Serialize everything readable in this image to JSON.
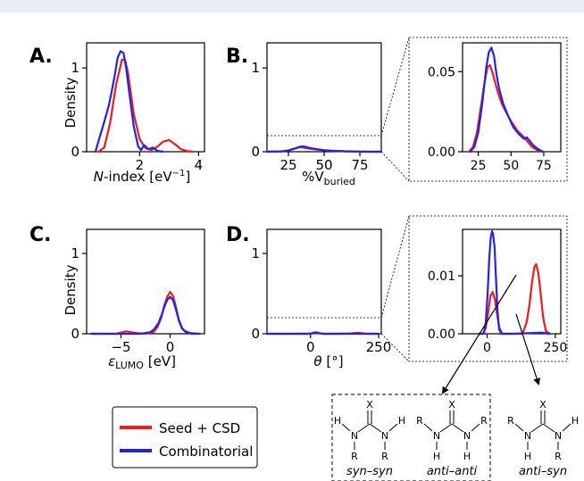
{
  "colors": {
    "seed": "#ee1c1c",
    "comb": "#2323e6",
    "axis": "#000000",
    "header": "#e9eef4"
  },
  "legend": {
    "items": [
      "Seed + CSD",
      "Combinatorial"
    ]
  },
  "chart_data": [
    {
      "panel": "A.",
      "type": "line",
      "ylabel": "Density",
      "xlabel": "N-index [eV⁻¹]",
      "xlim": [
        0.2,
        4.2
      ],
      "ylim": [
        0,
        1.3
      ],
      "xticks": [
        "2",
        "4"
      ],
      "yticks": [
        "0",
        "1"
      ],
      "series": [
        {
          "name": "Seed + CSD",
          "x": [
            0.6,
            0.8,
            1.0,
            1.2,
            1.4,
            1.5,
            1.6,
            1.8,
            2.0,
            2.2,
            2.4,
            2.6,
            2.8,
            3.0,
            3.2,
            3.4,
            3.6,
            3.8
          ],
          "y": [
            0.0,
            0.05,
            0.35,
            0.8,
            1.1,
            1.1,
            0.95,
            0.45,
            0.15,
            0.04,
            0.02,
            0.06,
            0.12,
            0.14,
            0.09,
            0.03,
            0.01,
            0.0
          ]
        },
        {
          "name": "Combinatorial",
          "x": [
            0.5,
            0.65,
            0.75,
            0.85,
            0.95,
            1.05,
            1.15,
            1.25,
            1.35,
            1.45,
            1.55,
            1.65,
            1.8,
            1.95,
            2.05,
            2.15,
            2.3,
            2.45,
            2.6,
            2.8
          ],
          "y": [
            0.0,
            0.18,
            0.3,
            0.42,
            0.55,
            0.72,
            0.9,
            1.12,
            1.2,
            1.18,
            0.98,
            0.7,
            0.3,
            0.06,
            0.02,
            0.08,
            0.03,
            0.05,
            0.01,
            0.0
          ]
        }
      ]
    },
    {
      "panel": "B.",
      "type": "line",
      "ylabel": "",
      "xlabel": "%V",
      "xlabel_sub": "buried",
      "xlim": [
        10,
        90
      ],
      "ylim": [
        0,
        1.3
      ],
      "xticks": [
        "25",
        "50",
        "75"
      ],
      "yticks": [
        "0",
        "1"
      ],
      "series": [
        {
          "name": "Seed + CSD",
          "x": [
            10,
            20,
            25,
            30,
            33,
            36,
            40,
            45,
            50,
            55,
            60,
            65,
            70,
            80,
            90
          ],
          "y": [
            0.0,
            0.003,
            0.015,
            0.04,
            0.054,
            0.048,
            0.035,
            0.025,
            0.017,
            0.012,
            0.008,
            0.004,
            0.002,
            0.0,
            0.0
          ]
        },
        {
          "name": "Combinatorial",
          "x": [
            10,
            20,
            25,
            30,
            33,
            36,
            40,
            45,
            50,
            55,
            60,
            62,
            65,
            70,
            80,
            90
          ],
          "y": [
            0.0,
            0.004,
            0.015,
            0.04,
            0.06,
            0.064,
            0.045,
            0.03,
            0.018,
            0.012,
            0.008,
            0.009,
            0.005,
            0.003,
            0.0,
            0.0
          ]
        }
      ]
    },
    {
      "panel": "B inset",
      "type": "line",
      "ylabel": "",
      "xlabel": "",
      "xlim": [
        13,
        88
      ],
      "ylim": [
        0,
        0.068
      ],
      "xticks": [
        "25",
        "50",
        "75"
      ],
      "yticks": [
        "0.00",
        "0.05"
      ],
      "series": [
        {
          "name": "Seed + CSD",
          "x": [
            18,
            21,
            24,
            27,
            30,
            32,
            34,
            36,
            38,
            40,
            43,
            46,
            50,
            55,
            60,
            63,
            66,
            70,
            75
          ],
          "y": [
            0.0,
            0.003,
            0.012,
            0.028,
            0.044,
            0.053,
            0.054,
            0.049,
            0.043,
            0.037,
            0.03,
            0.025,
            0.019,
            0.013,
            0.009,
            0.006,
            0.003,
            0.001,
            0.0
          ]
        },
        {
          "name": "Combinatorial",
          "x": [
            19,
            22,
            25,
            28,
            31,
            33,
            35,
            37,
            39,
            41,
            44,
            48,
            52,
            56,
            60,
            62,
            64,
            67,
            70,
            74
          ],
          "y": [
            0.0,
            0.003,
            0.012,
            0.03,
            0.052,
            0.062,
            0.065,
            0.06,
            0.048,
            0.039,
            0.03,
            0.022,
            0.015,
            0.011,
            0.008,
            0.009,
            0.007,
            0.004,
            0.002,
            0.0
          ]
        }
      ]
    },
    {
      "panel": "C.",
      "type": "line",
      "ylabel": "Density",
      "xlabel": "εLUMO [eV]",
      "xlim": [
        -8.5,
        3.5
      ],
      "ylim": [
        0,
        1.3
      ],
      "xticks": [
        "−5",
        "0"
      ],
      "yticks": [
        "0",
        "1"
      ],
      "series": [
        {
          "name": "Seed + CSD",
          "x": [
            -8,
            -5.5,
            -4.5,
            -3.5,
            -2.5,
            -1.7,
            -1.3,
            -0.9,
            -0.6,
            -0.3,
            0.0,
            0.3,
            0.6,
            0.9,
            1.3,
            2.0,
            3.0
          ],
          "y": [
            0.0,
            0.0,
            0.03,
            0.01,
            0.0,
            0.02,
            0.08,
            0.2,
            0.35,
            0.46,
            0.52,
            0.47,
            0.33,
            0.17,
            0.05,
            0.01,
            0.0
          ]
        },
        {
          "name": "Combinatorial",
          "x": [
            -8,
            -3,
            -2.0,
            -1.6,
            -1.2,
            -0.9,
            -0.6,
            -0.3,
            0.0,
            0.3,
            0.6,
            0.9,
            1.2,
            1.6,
            2.2,
            3.0
          ],
          "y": [
            0.0,
            0.0,
            0.02,
            0.06,
            0.13,
            0.22,
            0.33,
            0.42,
            0.46,
            0.42,
            0.3,
            0.16,
            0.07,
            0.02,
            0.0,
            0.0
          ]
        }
      ]
    },
    {
      "panel": "D.",
      "type": "line",
      "ylabel": "",
      "xlabel": "θ [°]",
      "xlim": [
        -160,
        260
      ],
      "ylim": [
        0,
        1.3
      ],
      "xticks": [
        "0",
        "250"
      ],
      "yticks": [
        "0",
        "1"
      ],
      "series": [
        {
          "name": "Seed + CSD",
          "x": [
            -160,
            -5,
            5,
            15,
            25,
            35,
            45,
            60,
            100,
            150,
            165,
            175,
            185,
            195,
            205,
            250
          ],
          "y": [
            0.0,
            0.0,
            0.003,
            0.007,
            0.006,
            0.003,
            0.0,
            0.0,
            0.0,
            0.004,
            0.01,
            0.012,
            0.009,
            0.004,
            0.0,
            0.0
          ]
        },
        {
          "name": "Combinatorial",
          "x": [
            -160,
            -5,
            5,
            12,
            18,
            24,
            30,
            38,
            45,
            60,
            250
          ],
          "y": [
            0.0,
            0.0,
            0.006,
            0.014,
            0.018,
            0.016,
            0.01,
            0.004,
            0.0,
            0.0,
            0.0
          ]
        }
      ]
    },
    {
      "panel": "D inset",
      "type": "line",
      "ylabel": "",
      "xlabel": "",
      "xlim": [
        -90,
        270
      ],
      "ylim": [
        0,
        0.018
      ],
      "xticks": [
        "0",
        "250"
      ],
      "yticks": [
        "0.00",
        "0.01"
      ],
      "series": [
        {
          "name": "Seed + CSD",
          "x": [
            -30,
            -15,
            -5,
            5,
            12,
            20,
            28,
            36,
            45,
            55,
            100,
            130,
            145,
            155,
            165,
            173,
            180,
            188,
            196,
            205,
            215,
            230
          ],
          "y": [
            0.0,
            0.0,
            0.001,
            0.004,
            0.0065,
            0.0072,
            0.006,
            0.0035,
            0.001,
            0.0,
            0.0,
            0.0,
            0.002,
            0.005,
            0.009,
            0.0115,
            0.012,
            0.0105,
            0.007,
            0.003,
            0.0005,
            0.0
          ]
        },
        {
          "name": "Combinatorial",
          "x": [
            -30,
            -12,
            -5,
            2,
            8,
            13,
            18,
            22,
            27,
            32,
            38,
            44,
            52,
            60,
            100,
            200,
            230
          ],
          "y": [
            0.0,
            0.0,
            0.002,
            0.007,
            0.013,
            0.0165,
            0.0177,
            0.0172,
            0.015,
            0.01,
            0.004,
            0.0008,
            0.0,
            0.0,
            0.0,
            0.0002,
            0.0
          ]
        }
      ]
    }
  ],
  "structures": {
    "syn_syn": {
      "label": "syn–syn",
      "atoms": [
        "X",
        "H",
        "H",
        "N",
        "N",
        "R",
        "R"
      ]
    },
    "anti_anti": {
      "label": "anti–anti",
      "atoms": [
        "X",
        "R",
        "R",
        "N",
        "N",
        "H",
        "H"
      ]
    },
    "anti_syn": {
      "label": "anti–syn",
      "atoms": [
        "X",
        "R",
        "H",
        "N",
        "N",
        "H",
        "R"
      ]
    }
  }
}
